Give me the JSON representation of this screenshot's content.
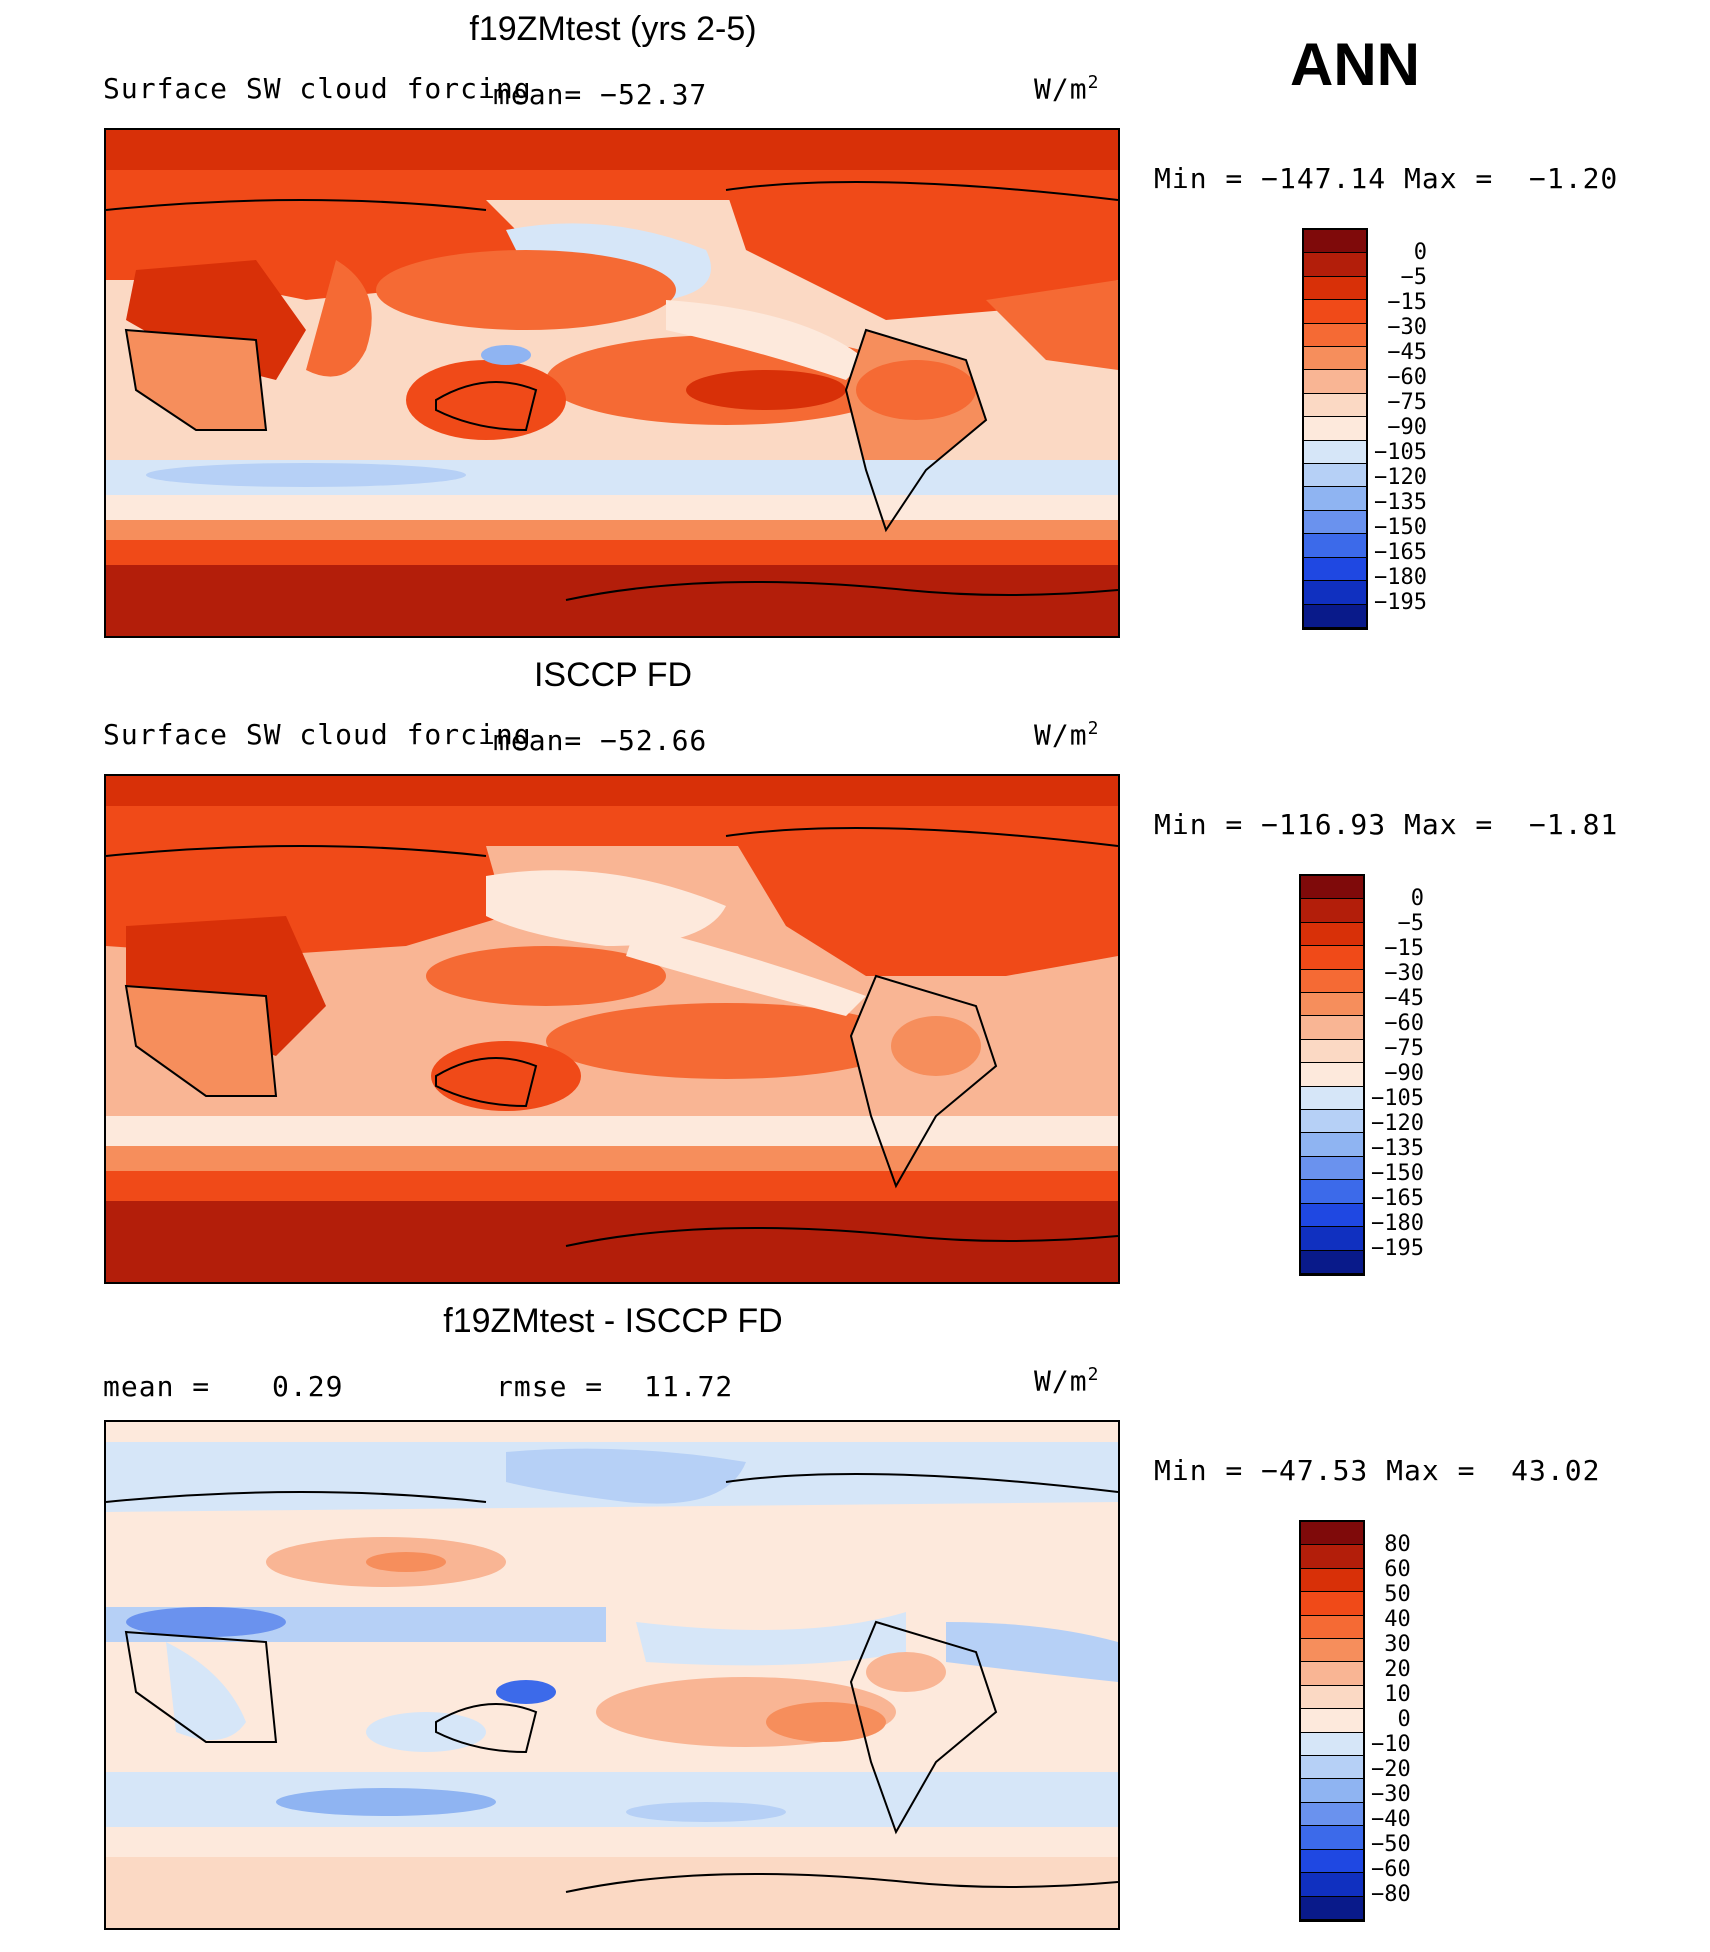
{
  "season": "ANN",
  "panels": [
    {
      "title": "f19ZMtest (yrs 2-5)",
      "left_label": "Surface SW cloud forcing",
      "mean_text": "mean= −52.37",
      "units_main": "W/m",
      "units_sup": "2",
      "minmax": "Min = −147.14 Max =  −1.20",
      "colorbar_labels": [
        "0",
        "−5",
        "−15",
        "−30",
        "−45",
        "−60",
        "−75",
        "−90",
        "−105",
        "−120",
        "−135",
        "−150",
        "−165",
        "−180",
        "−195"
      ]
    },
    {
      "title": "ISCCP FD",
      "left_label": "Surface SW cloud forcing",
      "mean_text": "mean= −52.66",
      "units_main": "W/m",
      "units_sup": "2",
      "minmax": "Min = −116.93 Max =  −1.81",
      "colorbar_labels": [
        "0",
        "−5",
        "−15",
        "−30",
        "−45",
        "−60",
        "−75",
        "−90",
        "−105",
        "−120",
        "−135",
        "−150",
        "−165",
        "−180",
        "−195"
      ]
    },
    {
      "title": "f19ZMtest - ISCCP FD",
      "mean_label": "mean =",
      "mean_value": "0.29",
      "rmse_label": "rmse =",
      "rmse_value": "11.72",
      "units_main": "W/m",
      "units_sup": "2",
      "minmax": "Min = −47.53 Max =  43.02",
      "colorbar_labels": [
        "80",
        "60",
        "50",
        "40",
        "30",
        "20",
        "10",
        "0",
        "−10",
        "−20",
        "−30",
        "−40",
        "−50",
        "−60",
        "−80"
      ]
    }
  ],
  "colors": {
    "forcing_scale": [
      "#7f0a0a",
      "#b31e0a",
      "#d83008",
      "#f04a18",
      "#f56a34",
      "#f68e5c",
      "#f9b594",
      "#fbd9c4",
      "#fde9dc",
      "#d6e6f8",
      "#b6d0f6",
      "#8fb4f2",
      "#6a92ee",
      "#3c6aea",
      "#1f48e2",
      "#1030c0",
      "#091a8a"
    ],
    "diff_scale": [
      "#7f0a0a",
      "#b31e0a",
      "#d83008",
      "#f04a18",
      "#f56a34",
      "#f68e5c",
      "#f9b594",
      "#fbd9c4",
      "#fde9dc",
      "#d6e6f8",
      "#b6d0f6",
      "#8fb4f2",
      "#6a92ee",
      "#3c6aea",
      "#1f48e2",
      "#1030c0",
      "#091a8a"
    ]
  }
}
